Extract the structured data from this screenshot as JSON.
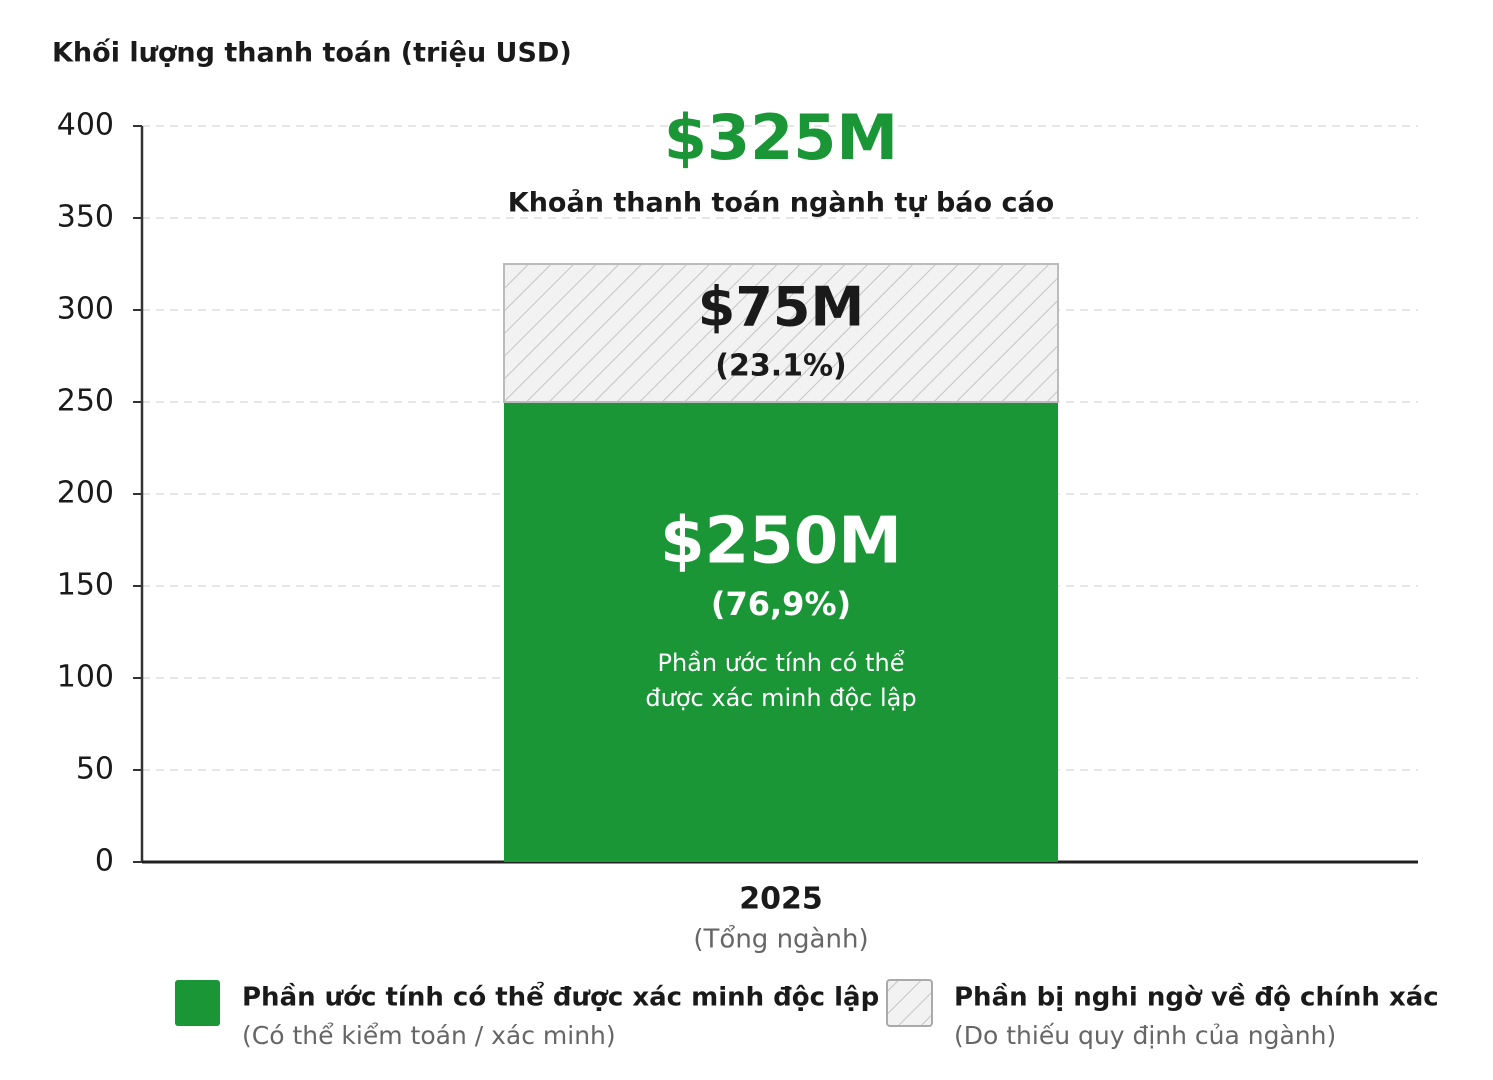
{
  "chart_data": {
    "type": "stacked_bar",
    "y_axis_label": "Khối lượng thanh toán (triệu USD)",
    "categories": [
      "2025"
    ],
    "category_sublabels": [
      "(Tổng ngành)"
    ],
    "ylim": [
      0,
      400
    ],
    "yticks": [
      0,
      50,
      100,
      150,
      200,
      250,
      300,
      350,
      400
    ],
    "grid": true,
    "total": {
      "value": 325,
      "label": "$325M"
    },
    "total_caption": "Khoản thanh toán ngành tự báo cáo",
    "series": [
      {
        "name": "Phần ước tính có thể được xác minh độc lập",
        "description": "(Có thể kiểm toán / xác minh)",
        "color": "#1a9637",
        "values": [
          250
        ],
        "value_labels": [
          "$250M"
        ],
        "percent_labels": [
          "(76,9%)"
        ],
        "annotation": [
          "Phần ước tính có thể",
          "được xác minh độc lập"
        ]
      },
      {
        "name": "Phần bị nghi ngờ về độ chính xác",
        "description": "(Do thiếu quy định của ngành)",
        "color": "#f2f2f2",
        "pattern": "hatch",
        "values": [
          75
        ],
        "value_labels": [
          "$75M"
        ],
        "percent_labels": [
          "(23.1%)"
        ]
      }
    ]
  }
}
